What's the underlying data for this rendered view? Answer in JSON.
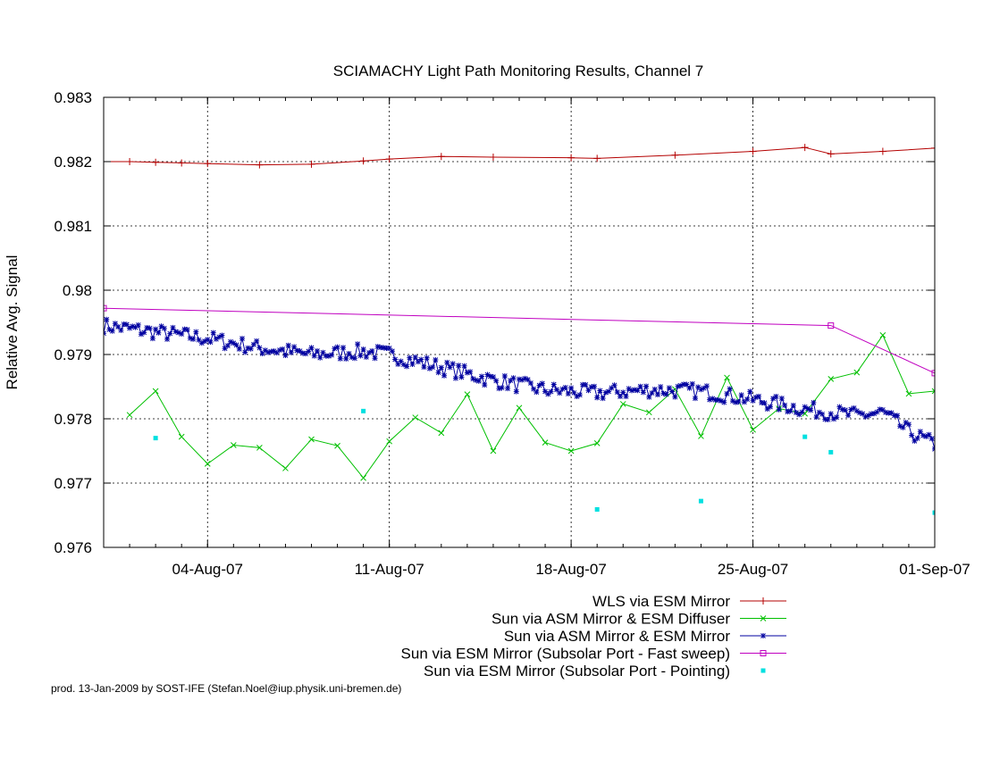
{
  "chart_data": {
    "type": "line",
    "title": "SCIAMACHY Light Path Monitoring Results, Channel 7",
    "xlabel": "",
    "ylabel": "Relative Avg. Signal",
    "xlim": [
      "2007-07-31",
      "2007-09-01"
    ],
    "ylim": [
      0.976,
      0.983
    ],
    "x_ticks": [
      {
        "date": "2007-08-04",
        "label": "04-Aug-07"
      },
      {
        "date": "2007-08-11",
        "label": "11-Aug-07"
      },
      {
        "date": "2007-08-18",
        "label": "18-Aug-07"
      },
      {
        "date": "2007-08-25",
        "label": "25-Aug-07"
      },
      {
        "date": "2007-09-01",
        "label": "01-Sep-07"
      }
    ],
    "y_ticks": [
      {
        "value": 0.976,
        "label": "0.976"
      },
      {
        "value": 0.977,
        "label": "0.977"
      },
      {
        "value": 0.978,
        "label": "0.978"
      },
      {
        "value": 0.979,
        "label": "0.979"
      },
      {
        "value": 0.98,
        "label": "0.98"
      },
      {
        "value": 0.981,
        "label": "0.981"
      },
      {
        "value": 0.982,
        "label": "0.982"
      },
      {
        "value": 0.983,
        "label": "0.983"
      }
    ],
    "grid": true,
    "legend_position": "below-right",
    "series": [
      {
        "name": "WLS via ESM Mirror",
        "color": "#b40000",
        "marker": "plus",
        "style": "line",
        "points": [
          [
            "2007-07-31",
            0.982
          ],
          [
            "2007-08-01",
            0.982
          ],
          [
            "2007-08-02",
            0.98199
          ],
          [
            "2007-08-03",
            0.98198
          ],
          [
            "2007-08-04",
            0.98197
          ],
          [
            "2007-08-06",
            0.98195
          ],
          [
            "2007-08-08",
            0.98196
          ],
          [
            "2007-08-10",
            0.98201
          ],
          [
            "2007-08-11",
            0.98204
          ],
          [
            "2007-08-13",
            0.98208
          ],
          [
            "2007-08-15",
            0.98207
          ],
          [
            "2007-08-18",
            0.98206
          ],
          [
            "2007-08-19",
            0.98205
          ],
          [
            "2007-08-22",
            0.9821
          ],
          [
            "2007-08-25",
            0.98216
          ],
          [
            "2007-08-27",
            0.98222
          ],
          [
            "2007-08-28",
            0.98212
          ],
          [
            "2007-08-30",
            0.98216
          ],
          [
            "2007-09-01",
            0.98221
          ]
        ]
      },
      {
        "name": "Sun via ASM Mirror & ESM Diffuser",
        "color": "#00c000",
        "marker": "cross",
        "style": "line",
        "points": [
          [
            "2007-08-01",
            0.97806
          ],
          [
            "2007-08-02",
            0.97843
          ],
          [
            "2007-08-03",
            0.97772
          ],
          [
            "2007-08-04",
            0.9773
          ],
          [
            "2007-08-05",
            0.97759
          ],
          [
            "2007-08-06",
            0.97755
          ],
          [
            "2007-08-07",
            0.97723
          ],
          [
            "2007-08-08",
            0.97768
          ],
          [
            "2007-08-09",
            0.97758
          ],
          [
            "2007-08-10",
            0.97708
          ],
          [
            "2007-08-11",
            0.97765
          ],
          [
            "2007-08-12",
            0.97802
          ],
          [
            "2007-08-13",
            0.97778
          ],
          [
            "2007-08-14",
            0.97838
          ],
          [
            "2007-08-15",
            0.9775
          ],
          [
            "2007-08-16",
            0.97817
          ],
          [
            "2007-08-17",
            0.97763
          ],
          [
            "2007-08-18",
            0.9775
          ],
          [
            "2007-08-19",
            0.97762
          ],
          [
            "2007-08-20",
            0.97823
          ],
          [
            "2007-08-21",
            0.9781
          ],
          [
            "2007-08-22",
            0.97846
          ],
          [
            "2007-08-23",
            0.97773
          ],
          [
            "2007-08-24",
            0.97864
          ],
          [
            "2007-08-25",
            0.97783
          ],
          [
            "2007-08-26",
            0.97816
          ],
          [
            "2007-08-27",
            0.97808
          ],
          [
            "2007-08-28",
            0.97862
          ],
          [
            "2007-08-29",
            0.97872
          ],
          [
            "2007-08-30",
            0.9793
          ],
          [
            "2007-08-31",
            0.97839
          ],
          [
            "2007-09-01",
            0.97843
          ]
        ]
      },
      {
        "name": "Sun via ASM Mirror & ESM Mirror",
        "color": "#0000a0",
        "marker": "star",
        "style": "line",
        "dense": true,
        "trend": [
          [
            "2007-07-31",
            0.97945
          ],
          [
            "2007-08-02",
            0.97935
          ],
          [
            "2007-08-04",
            0.97925
          ],
          [
            "2007-08-06",
            0.9791
          ],
          [
            "2007-08-08",
            0.979
          ],
          [
            "2007-08-10",
            0.97905
          ],
          [
            "2007-08-11",
            0.979
          ],
          [
            "2007-08-13",
            0.9788
          ],
          [
            "2007-08-15",
            0.9786
          ],
          [
            "2007-08-17",
            0.97845
          ],
          [
            "2007-08-19",
            0.9784
          ],
          [
            "2007-08-21",
            0.97845
          ],
          [
            "2007-08-23",
            0.97843
          ],
          [
            "2007-08-25",
            0.9783
          ],
          [
            "2007-08-27",
            0.97815
          ],
          [
            "2007-08-29",
            0.97805
          ],
          [
            "2007-08-30",
            0.9781
          ],
          [
            "2007-08-31",
            0.9778
          ],
          [
            "2007-09-01",
            0.9776
          ]
        ],
        "noise_amplitude": 0.00012,
        "points_per_day": 9
      },
      {
        "name": "Sun via ESM Mirror (Subsolar Port - Fast sweep)",
        "color": "#c000c0",
        "marker": "square",
        "style": "line",
        "points": [
          [
            "2007-07-31",
            0.97972
          ],
          [
            "2007-08-28",
            0.97945
          ],
          [
            "2007-09-01",
            0.97871
          ]
        ]
      },
      {
        "name": "Sun via ESM Mirror (Subsolar Port - Pointing)",
        "color": "#00e0e0",
        "marker": "dot",
        "style": "points",
        "points": [
          [
            "2007-08-02",
            0.9777
          ],
          [
            "2007-08-10",
            0.97812
          ],
          [
            "2007-08-19",
            0.97659
          ],
          [
            "2007-08-23",
            0.97672
          ],
          [
            "2007-08-27",
            0.97772
          ],
          [
            "2007-08-28",
            0.97748
          ],
          [
            "2007-09-01",
            0.97654
          ]
        ]
      }
    ]
  },
  "footer": "prod. 13-Jan-2009 by SOST-IFE (Stefan.Noel@iup.physik.uni-bremen.de)"
}
